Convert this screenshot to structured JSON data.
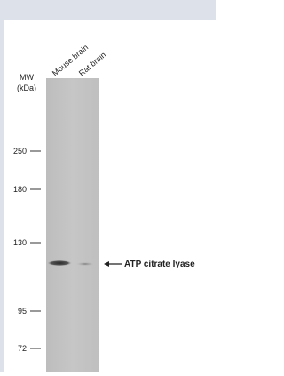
{
  "mw_label": {
    "line1": "MW",
    "line2": "(kDa)"
  },
  "lanes": [
    "Mouse brain",
    "Rat brain"
  ],
  "markers": [
    "250",
    "180",
    "130",
    "95",
    "72"
  ],
  "target_label": "ATP citrate lyase"
}
